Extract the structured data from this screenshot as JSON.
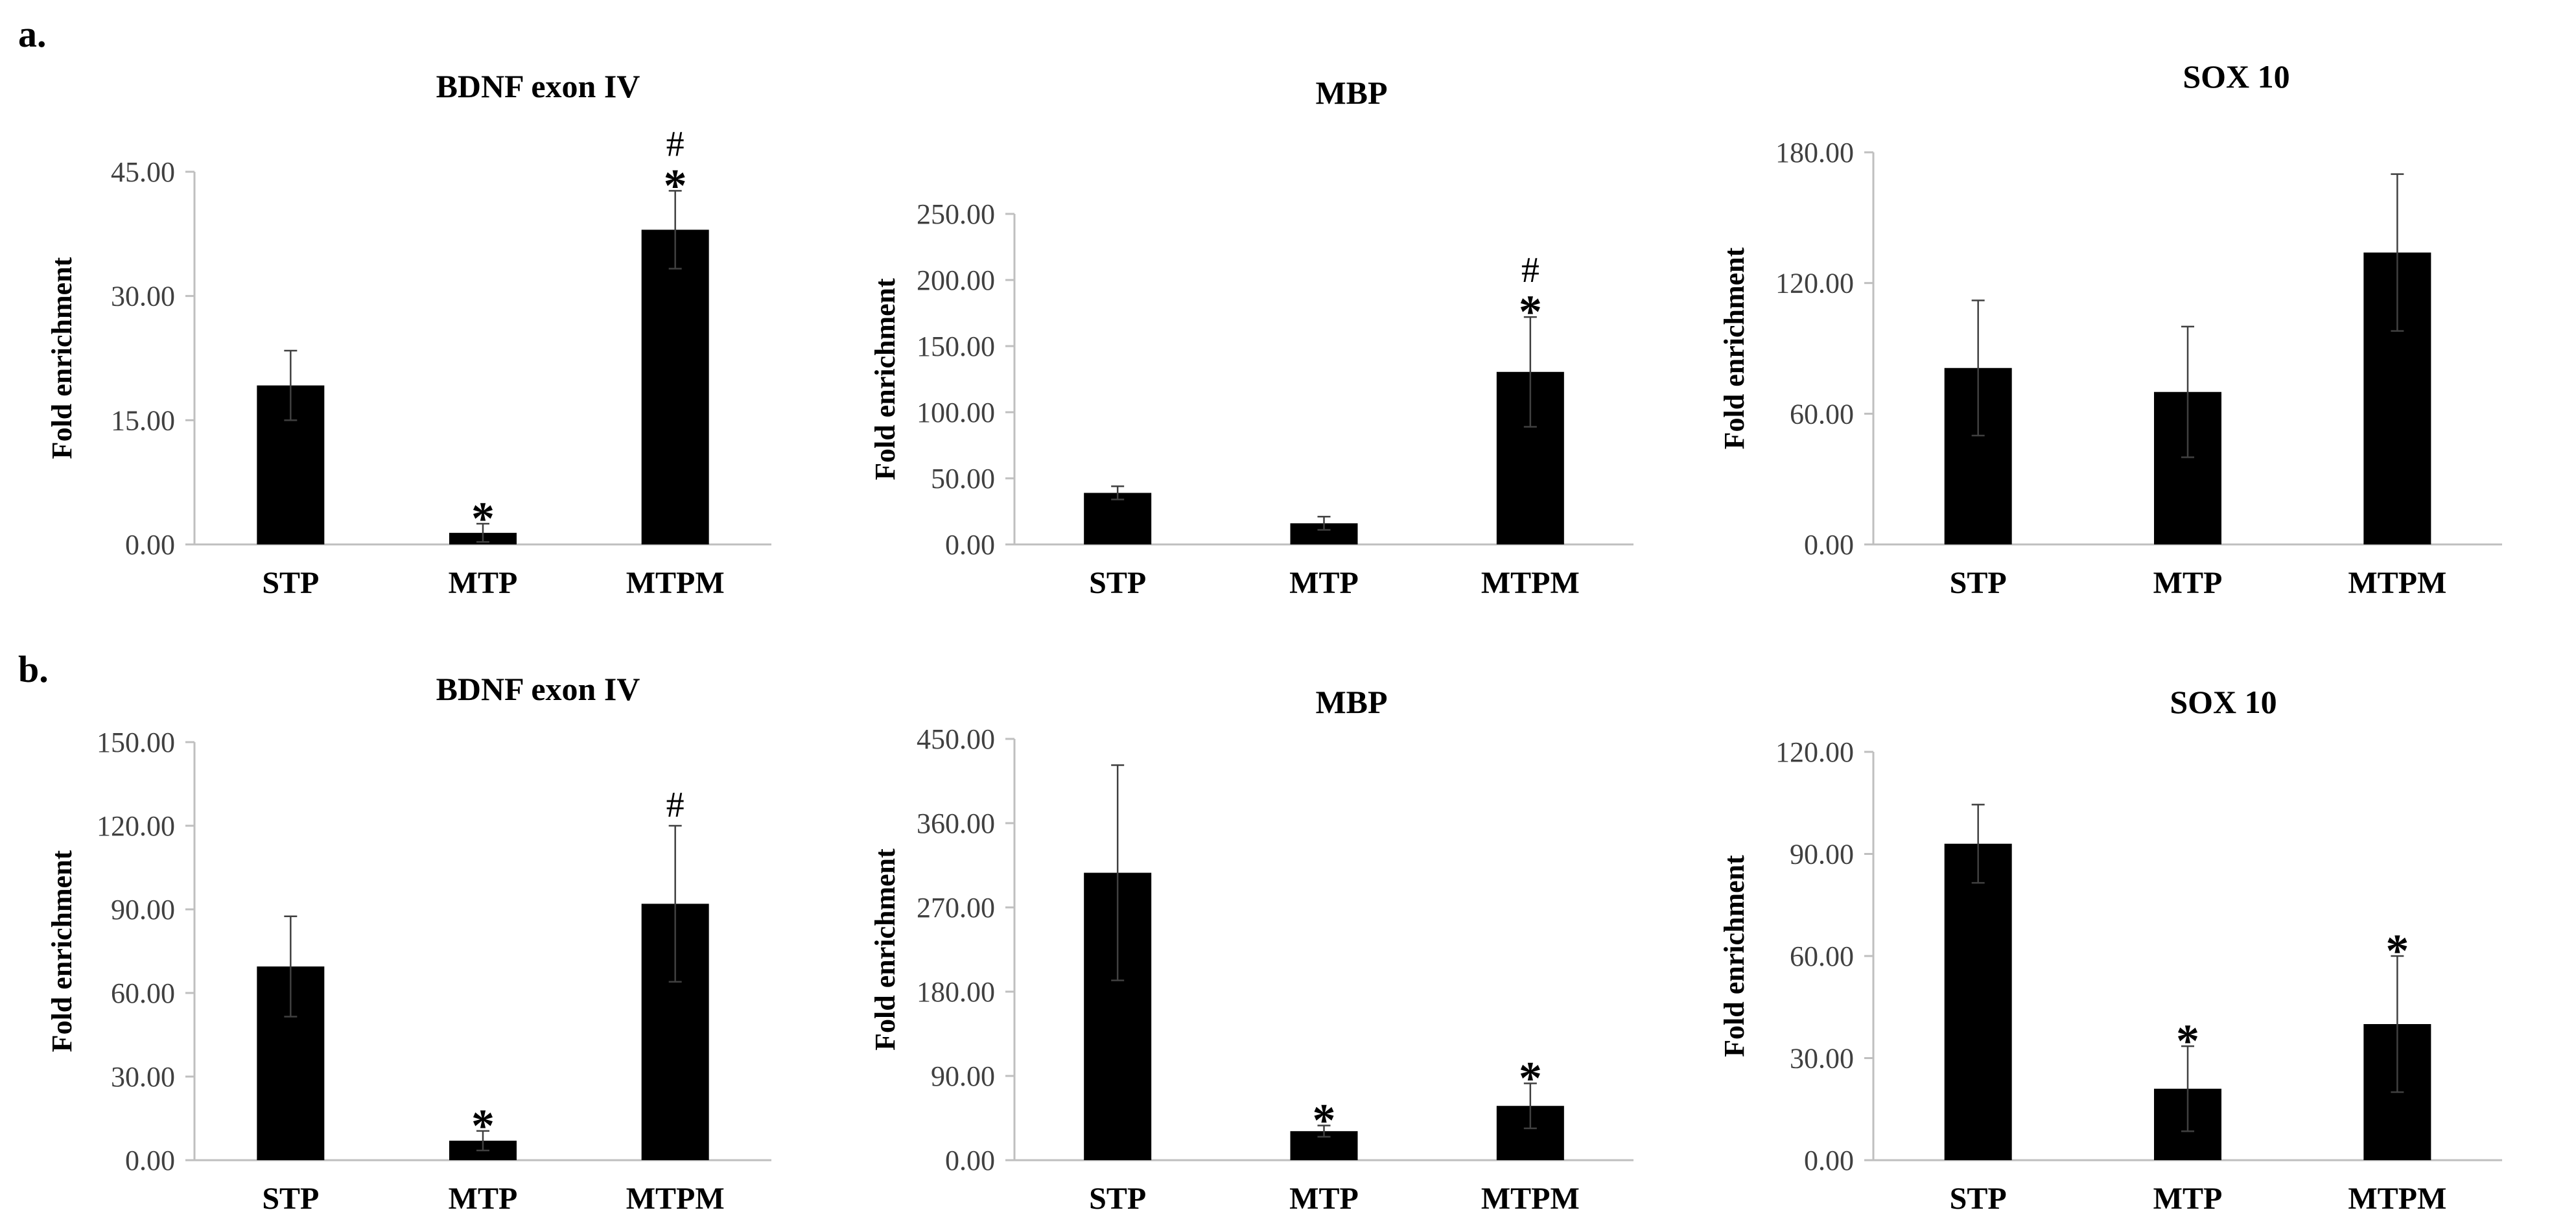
{
  "panels": [
    {
      "label": "a."
    },
    {
      "label": "b."
    }
  ],
  "chart_data": [
    {
      "type": "bar",
      "panel": "a.",
      "title": "BDNF exon IV",
      "ylabel": "Fold enrichment",
      "xlabel": "",
      "categories": [
        "STP",
        "MTP",
        "MTPM"
      ],
      "values": [
        19.2,
        1.4,
        38.0
      ],
      "errors": [
        4.2,
        1.1,
        4.7
      ],
      "ylim": [
        0,
        45
      ],
      "yticks": [
        0,
        15,
        30,
        45
      ],
      "ytick_labels": [
        "0.00",
        "15.00",
        "30.00",
        "45.00"
      ],
      "annotations": [
        [],
        [
          "*"
        ],
        [
          "*",
          "#"
        ]
      ]
    },
    {
      "type": "bar",
      "panel": "a.",
      "title": "MBP",
      "ylabel": "Fold enrichment",
      "xlabel": "",
      "categories": [
        "STP",
        "MTP",
        "MTPM"
      ],
      "values": [
        39.0,
        16.0,
        130.5
      ],
      "errors": [
        5.0,
        5.0,
        41.5
      ],
      "ylim": [
        0,
        250
      ],
      "yticks": [
        0,
        50,
        100,
        150,
        200,
        250
      ],
      "ytick_labels": [
        "0.00",
        "50.00",
        "100.00",
        "150.00",
        "200.00",
        "250.00"
      ],
      "annotations": [
        [],
        [],
        [
          "*",
          "#"
        ]
      ]
    },
    {
      "type": "bar",
      "panel": "a.",
      "title": "SOX 10",
      "ylabel": "Fold enrichment",
      "xlabel": "",
      "categories": [
        "STP",
        "MTP",
        "MTPM"
      ],
      "values": [
        81.0,
        70.0,
        134.0
      ],
      "errors": [
        31.0,
        30.0,
        36.0
      ],
      "ylim": [
        0,
        180
      ],
      "yticks": [
        0,
        60,
        120,
        180
      ],
      "ytick_labels": [
        "0.00",
        "60.00",
        "120.00",
        "180.00"
      ],
      "annotations": [
        [],
        [],
        []
      ]
    },
    {
      "type": "bar",
      "panel": "b.",
      "title": "BDNF exon IV",
      "ylabel": "Fold enrichment",
      "xlabel": "",
      "categories": [
        "STP",
        "MTP",
        "MTPM"
      ],
      "values": [
        69.5,
        7.0,
        92.0
      ],
      "errors": [
        18.0,
        3.5,
        28.0
      ],
      "ylim": [
        0,
        150
      ],
      "yticks": [
        0,
        30,
        60,
        90,
        120,
        150
      ],
      "ytick_labels": [
        "0.00",
        "30.00",
        "60.00",
        "90.00",
        "120.00",
        "150.00"
      ],
      "annotations": [
        [],
        [
          "*"
        ],
        [
          "#"
        ]
      ]
    },
    {
      "type": "bar",
      "panel": "b.",
      "title": "MBP",
      "ylabel": "Fold enrichment",
      "xlabel": "",
      "categories": [
        "STP",
        "MTP",
        "MTPM"
      ],
      "values": [
        307.0,
        31.0,
        58.0
      ],
      "errors": [
        115.0,
        6.0,
        24.0
      ],
      "ylim": [
        0,
        450
      ],
      "yticks": [
        0,
        90,
        180,
        270,
        360,
        450
      ],
      "ytick_labels": [
        "0.00",
        "90.00",
        "180.00",
        "270.00",
        "360.00",
        "450.00"
      ],
      "annotations": [
        [],
        [
          "*"
        ],
        [
          "*"
        ]
      ]
    },
    {
      "type": "bar",
      "panel": "b.",
      "title": "SOX 10",
      "ylabel": "Fold enrichment",
      "xlabel": "",
      "categories": [
        "STP",
        "MTP",
        "MTPM"
      ],
      "values": [
        93.0,
        21.0,
        40.0
      ],
      "errors": [
        11.5,
        12.5,
        20.0
      ],
      "ylim": [
        0,
        120
      ],
      "yticks": [
        0,
        30,
        60,
        90,
        120
      ],
      "ytick_labels": [
        "0.00",
        "30.00",
        "60.00",
        "90.00",
        "120.00"
      ],
      "annotations": [
        [],
        [
          "*"
        ],
        [
          "*"
        ]
      ]
    }
  ]
}
